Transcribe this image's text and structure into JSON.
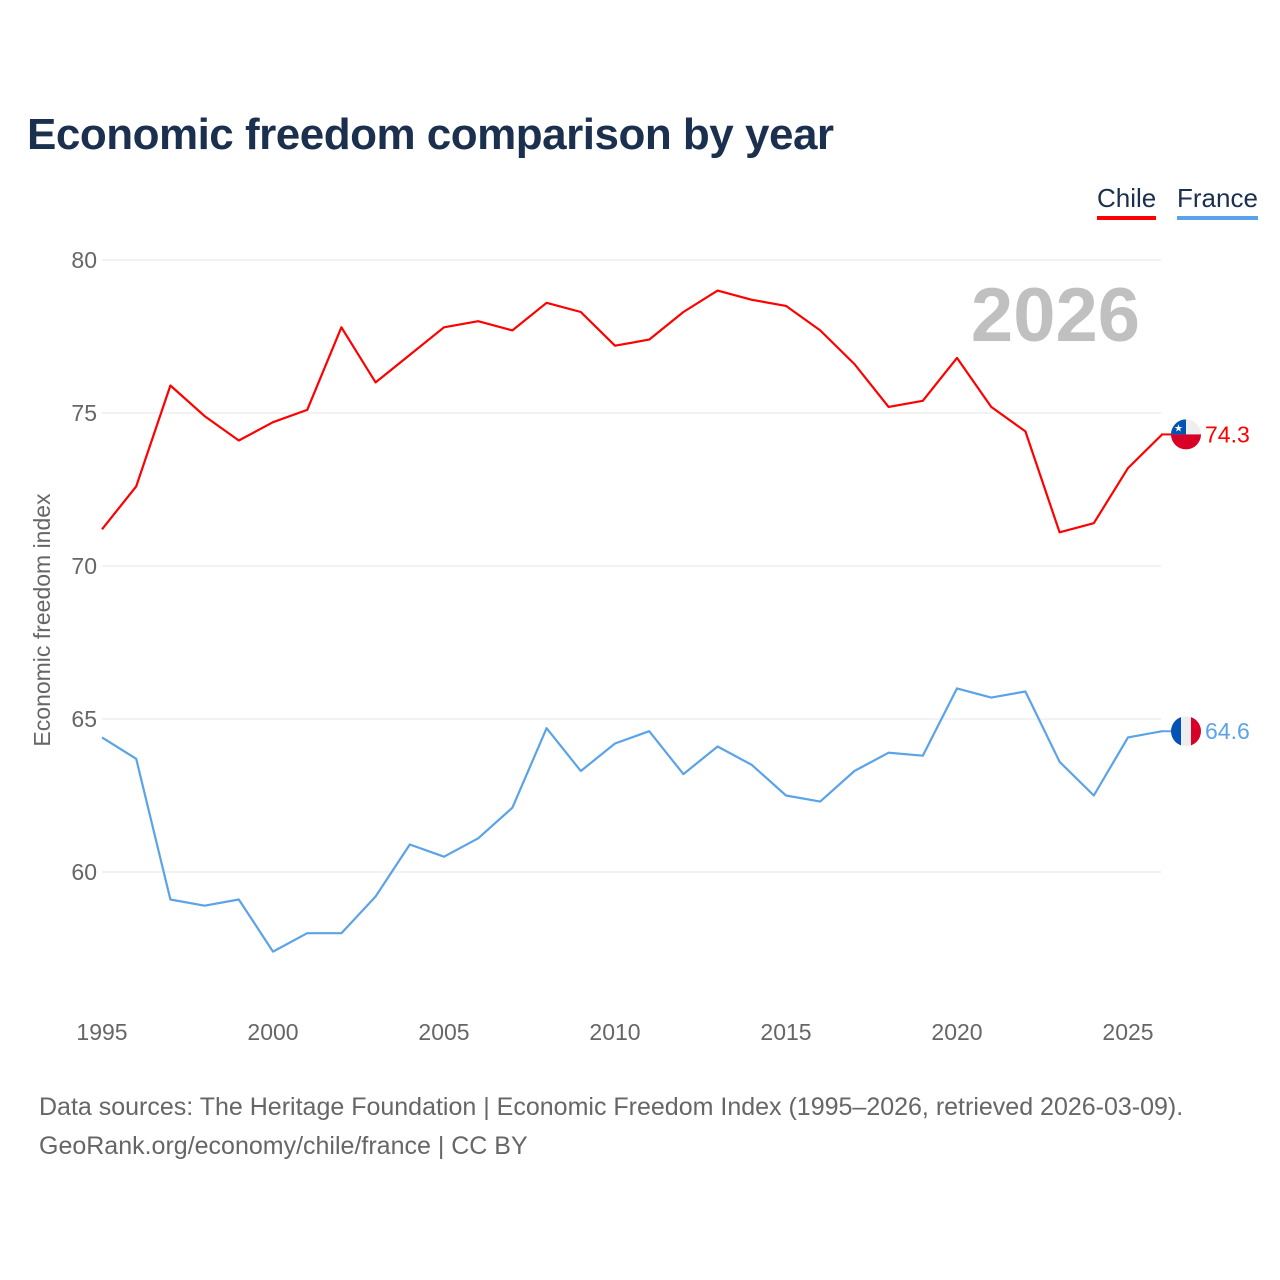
{
  "chart_data": {
    "type": "line",
    "title": "Economic freedom comparison by year",
    "xlabel": "",
    "ylabel": "Economic freedom index",
    "xlim": [
      1995,
      2026
    ],
    "ylim": [
      56,
      80
    ],
    "x_ticks": [
      "1995",
      "2000",
      "2005",
      "2010",
      "2015",
      "2020",
      "2025"
    ],
    "y_ticks": [
      "60",
      "65",
      "70",
      "75",
      "80"
    ],
    "grid": true,
    "legend_placement": "top-right",
    "year_label": "2026",
    "x": [
      1995,
      1996,
      1997,
      1998,
      1999,
      2000,
      2001,
      2002,
      2003,
      2004,
      2005,
      2006,
      2007,
      2008,
      2009,
      2010,
      2011,
      2012,
      2013,
      2014,
      2015,
      2016,
      2017,
      2018,
      2019,
      2020,
      2021,
      2022,
      2023,
      2024,
      2025,
      2026
    ],
    "series": [
      {
        "name": "Chile",
        "color": "#ff0000",
        "end_label": "74.3",
        "values": [
          71.2,
          72.6,
          75.9,
          74.9,
          74.1,
          74.7,
          75.1,
          77.8,
          76.0,
          76.9,
          77.8,
          78.0,
          77.7,
          78.6,
          78.3,
          77.2,
          77.4,
          78.3,
          79.0,
          78.7,
          78.5,
          77.7,
          76.6,
          75.2,
          75.4,
          76.8,
          75.2,
          74.4,
          71.1,
          71.4,
          73.2,
          74.3
        ]
      },
      {
        "name": "France",
        "color": "#5ba3e8",
        "end_label": "64.6",
        "values": [
          64.4,
          63.7,
          59.1,
          58.9,
          59.1,
          57.4,
          58.0,
          58.0,
          59.2,
          60.9,
          60.5,
          61.1,
          62.1,
          64.7,
          63.3,
          64.2,
          64.6,
          63.2,
          64.1,
          63.5,
          62.5,
          62.3,
          63.3,
          63.9,
          63.8,
          66.0,
          65.7,
          65.9,
          63.6,
          62.5,
          64.4,
          64.6
        ]
      }
    ]
  },
  "footer": {
    "line1": "Data sources: The Heritage Foundation | Economic Freedom Index (1995–2026, retrieved 2026-03-09).",
    "line2": "GeoRank.org/economy/chile/france | CC BY"
  }
}
